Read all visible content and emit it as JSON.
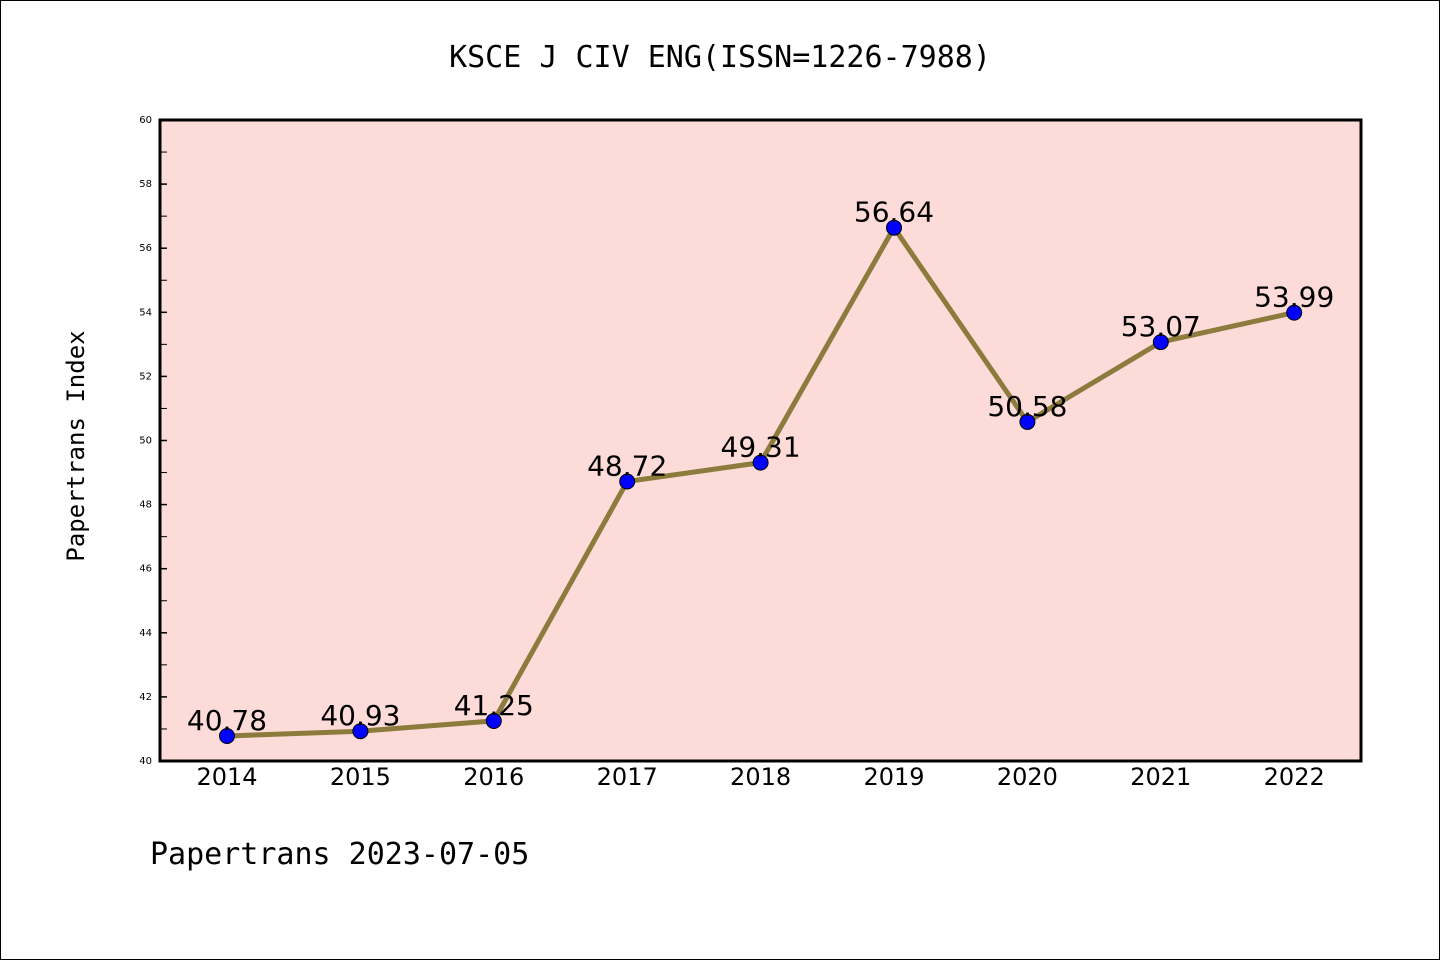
{
  "chart_data": {
    "type": "line",
    "title": "KSCE J CIV ENG(ISSN=1226-7988)",
    "ylabel": "Papertrans Index",
    "xlabel": "",
    "categories": [
      "2014",
      "2015",
      "2016",
      "2017",
      "2018",
      "2019",
      "2020",
      "2021",
      "2022"
    ],
    "values": [
      40.78,
      40.93,
      41.25,
      48.72,
      49.31,
      56.64,
      50.58,
      53.07,
      53.99
    ],
    "data_labels": [
      "40.78",
      "40.93",
      "41.25",
      "48.72",
      "49.31",
      "56.64",
      "50.58",
      "53.07",
      "53.99"
    ],
    "ylim": [
      40,
      60
    ],
    "yticks": [
      "40",
      "42",
      "44",
      "46",
      "48",
      "50",
      "52",
      "54",
      "56",
      "58",
      "60"
    ],
    "grid": false,
    "colors": {
      "plot_background": "#fddbd8",
      "line": "#8c7b3c",
      "marker": "#0000ff"
    }
  },
  "footer": "Papertrans 2023-07-05"
}
